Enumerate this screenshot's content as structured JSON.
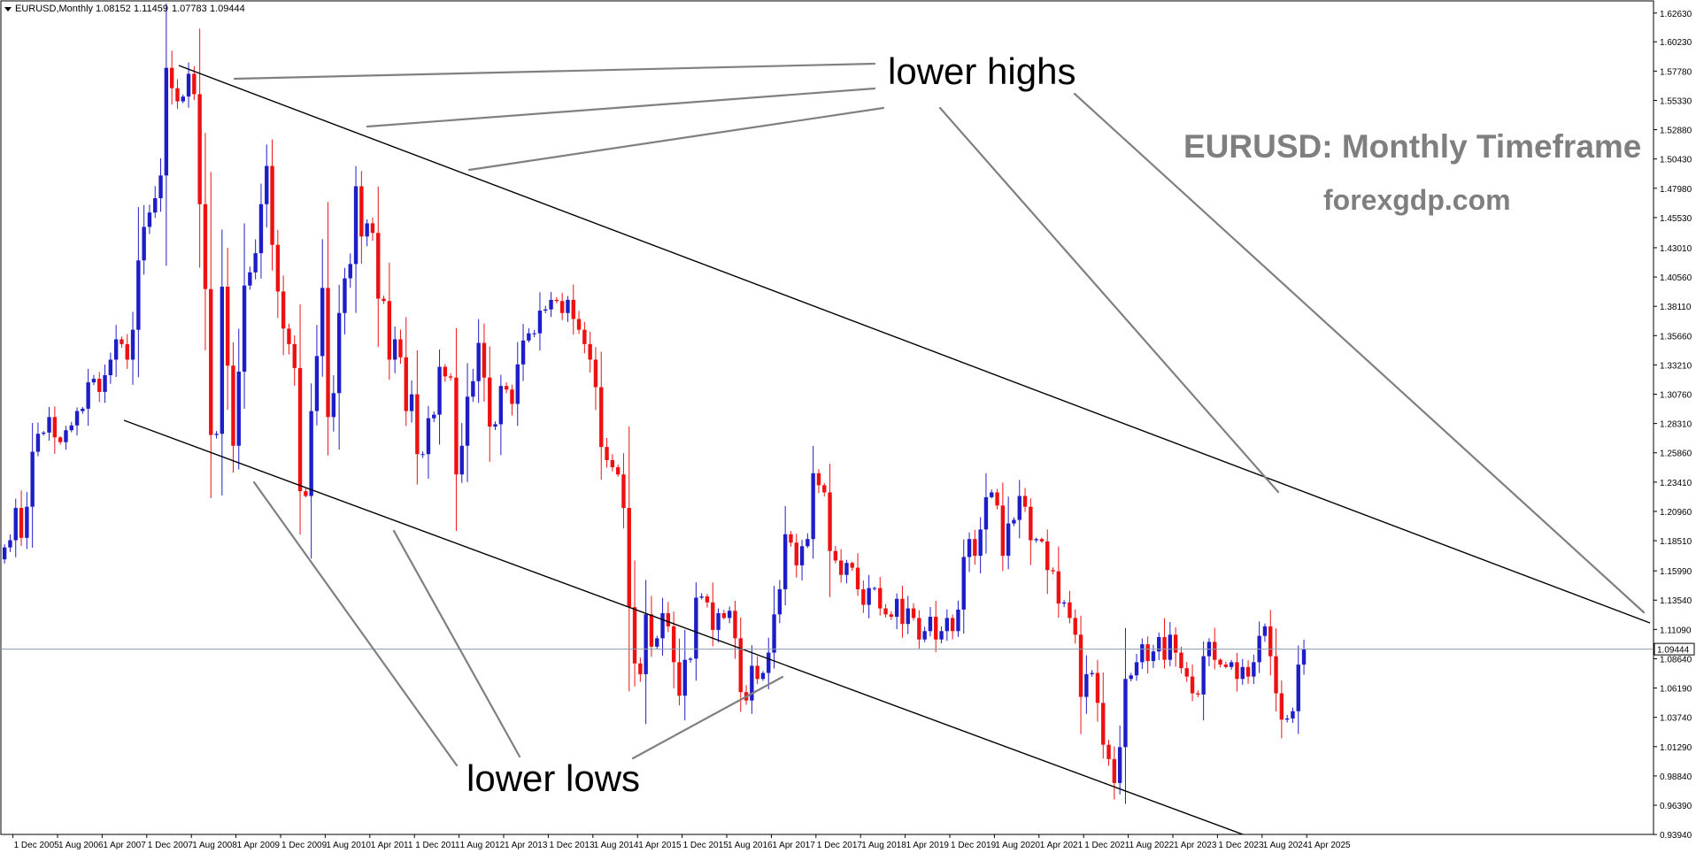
{
  "chart_data": {
    "type": "candlestick",
    "symbol_header": "EURUSD,Monthly",
    "header_ohlc": [
      "1.08152",
      "1.11459",
      "1.07783",
      "1.09444"
    ],
    "title": "EURUSD: Monthly Timeframe",
    "subtitle": "forexgdp.com",
    "last_price_label": "1.09444",
    "last_price": 1.09444,
    "ylim": [
      0.9395,
      1.6365
    ],
    "y_ticks": [
      "1.62630",
      "1.60230",
      "1.57780",
      "1.55330",
      "1.52880",
      "1.50430",
      "1.47980",
      "1.45530",
      "1.43010",
      "1.40560",
      "1.38110",
      "1.35660",
      "1.33210",
      "1.30760",
      "1.28310",
      "1.25860",
      "1.23410",
      "1.20960",
      "1.18510",
      "1.15990",
      "1.13540",
      "1.11090",
      "1.08640",
      "1.06190",
      "1.03740",
      "1.01290",
      "0.98840",
      "0.96390",
      "0.93940"
    ],
    "x_ticks": [
      "1 Dec 2005",
      "1 Aug 2006",
      "1 Apr 2007",
      "1 Dec 2007",
      "1 Aug 2008",
      "1 Apr 2009",
      "1 Dec 2009",
      "1 Aug 2010",
      "1 Apr 2011",
      "1 Dec 2011",
      "1 Aug 2012",
      "1 Apr 2013",
      "1 Dec 2013",
      "1 Aug 2014",
      "1 Apr 2015",
      "1 Dec 2015",
      "1 Aug 2016",
      "1 Apr 2017",
      "1 Dec 2017",
      "1 Aug 2018",
      "1 Apr 2019",
      "1 Dec 2019",
      "1 Aug 2020",
      "1 Apr 2021",
      "1 Dec 2021",
      "1 Aug 2022",
      "1 Apr 2023",
      "1 Dec 2023",
      "1 Aug 2024",
      "1 Apr 2025"
    ],
    "x_start": "2005-10",
    "annotations": {
      "top": "lower highs",
      "bottom": "lower lows"
    },
    "colors": {
      "bull": "#1e1ec8",
      "bear": "#ee1111",
      "trendline": "#000000",
      "pointer": "#808080",
      "title": "#7f7f7f"
    },
    "closes": [
      1.1795,
      1.1855,
      1.2125,
      1.1875,
      1.2135,
      1.2595,
      1.2745,
      1.2755,
      1.2885,
      1.2715,
      1.2675,
      1.2775,
      1.2815,
      1.2935,
      1.2955,
      1.3175,
      1.3205,
      1.3095,
      1.3235,
      1.3365,
      1.3535,
      1.3495,
      1.3365,
      1.3615,
      1.4195,
      1.4475,
      1.4595,
      1.4715,
      1.4905,
      1.5805,
      1.5635,
      1.5525,
      1.5565,
      1.5755,
      1.5585,
      1.4665,
      1.3955,
      1.2735,
      1.2745,
      1.3975,
      1.3315,
      1.2645,
      1.3265,
      1.3985,
      1.4095,
      1.4255,
      1.4665,
      1.4985,
      1.4325,
      1.3935,
      1.3625,
      1.3495,
      1.3295,
      1.2265,
      1.2225,
      1.2935,
      1.3395,
      1.3965,
      1.2885,
      1.3085,
      1.3755,
      1.4045,
      1.4165,
      1.4815,
      1.4395,
      1.4505,
      1.4425,
      1.3875,
      1.3855,
      1.3365,
      1.3535,
      1.3385,
      1.2935,
      1.3075,
      1.2575,
      1.2575,
      1.2875,
      1.2905,
      1.3305,
      1.3225,
      1.3215,
      1.2405,
      1.2645,
      1.3055,
      1.3185,
      1.3505,
      1.3215,
      1.2805,
      1.2825,
      1.3145,
      1.3115,
      1.2995,
      1.3325,
      1.3525,
      1.3585,
      1.3585,
      1.3775,
      1.3785,
      1.3865,
      1.3855,
      1.3755,
      1.3865,
      1.3705,
      1.3615,
      1.3495,
      1.3365,
      1.3135,
      1.2635,
      1.2525,
      1.2465,
      1.2405,
      1.2125,
      1.1295,
      1.0825,
      1.0735,
      1.1235,
      1.0965,
      1.1035,
      1.1245,
      1.1135,
      1.0835,
      1.0555,
      1.0855,
      1.0865,
      1.1375,
      1.1385,
      1.1335,
      1.1105,
      1.1245,
      1.1205,
      1.1265,
      1.1035,
      1.0585,
      1.0515,
      1.0805,
      1.0695,
      1.0745,
      1.0915,
      1.1235,
      1.1445,
      1.1905,
      1.1835,
      1.1645,
      1.1805,
      1.1865,
      1.2415,
      1.2315,
      1.2255,
      1.1765,
      1.1685,
      1.1565,
      1.1665,
      1.1625,
      1.1445,
      1.1315,
      1.1455,
      1.1455,
      1.1285,
      1.1235,
      1.1215,
      1.1365,
      1.1155,
      1.1285,
      1.1205,
      1.1025,
      1.1095,
      1.1215,
      1.1025,
      1.1095,
      1.1205,
      1.1095,
      1.1275,
      1.1715,
      1.1865,
      1.1725,
      1.1945,
      1.2215,
      1.2255,
      1.2145,
      1.1725,
      1.1995,
      1.2025,
      1.2225,
      1.2135,
      1.1855,
      1.1865,
      1.1845,
      1.1605,
      1.1595,
      1.1325,
      1.1335,
      1.1205,
      1.1065,
      1.0545,
      1.0735,
      1.0745,
      1.0495,
      1.0145,
      1.0025,
      0.9825,
      1.0125,
      1.0695,
      1.0725,
      1.0835,
      1.0985,
      1.0845,
      1.0925,
      1.1045,
      1.0855,
      1.1065,
      1.0915,
      1.0785,
      1.0715,
      1.0575,
      1.0565,
      1.0885,
      1.1005,
      1.0855,
      1.0815,
      1.0795,
      1.0835,
      1.0695,
      1.0795,
      1.0715,
      1.0835,
      1.1055,
      1.1135,
      1.0885,
      1.0575,
      1.0355,
      1.0365,
      1.0425,
      1.0815,
      1.09444
    ]
  }
}
